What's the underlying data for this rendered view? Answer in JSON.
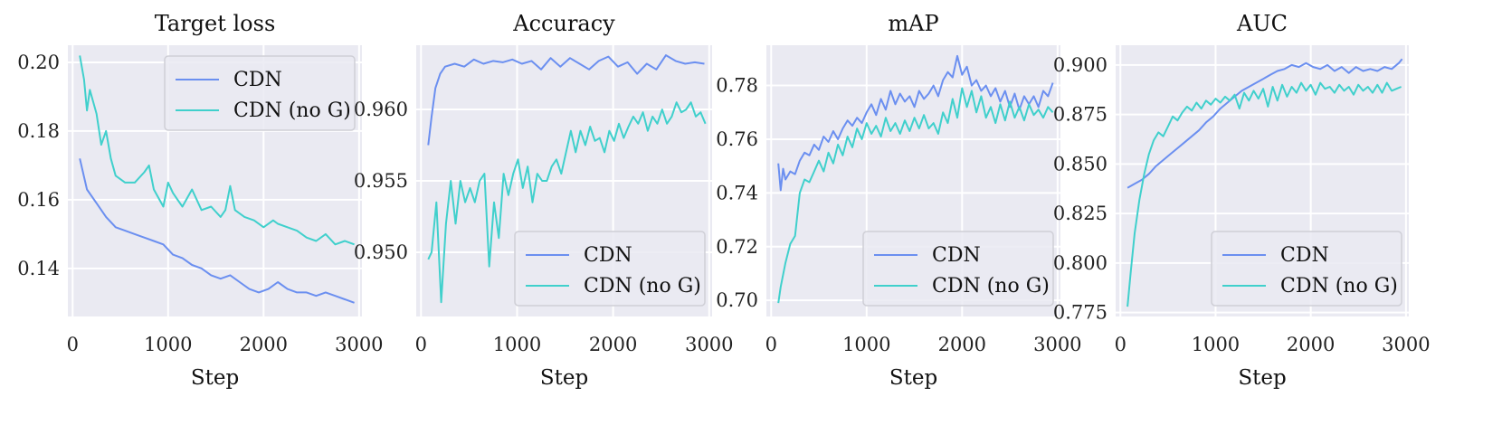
{
  "colors": {
    "cdn": "#6b8ff0",
    "cdn_no_g": "#40d0cc",
    "panel_bg": "#eaeaf2",
    "grid": "#ffffff"
  },
  "chart_data": [
    {
      "type": "line",
      "title": "Target loss",
      "xlabel": "Step",
      "ylabel": "",
      "xlim": [
        -50,
        3030
      ],
      "ylim": [
        0.126,
        0.205
      ],
      "xticks": [
        0,
        1000,
        2000,
        3000
      ],
      "xtick_labels": [
        "0",
        "1000",
        "2000",
        "3000"
      ],
      "yticks": [
        0.14,
        0.16,
        0.18,
        0.2
      ],
      "ytick_labels": [
        "0.14",
        "0.16",
        "0.18",
        "0.20"
      ],
      "legend": {
        "position": "top-right",
        "entries": [
          "CDN",
          "CDN (no G)"
        ]
      },
      "grid": true,
      "series": [
        {
          "name": "CDN",
          "color_key": "cdn",
          "x": [
            75,
            150,
            250,
            350,
            450,
            550,
            650,
            750,
            850,
            950,
            1050,
            1150,
            1250,
            1350,
            1450,
            1550,
            1650,
            1750,
            1850,
            1950,
            2050,
            2150,
            2250,
            2350,
            2450,
            2550,
            2650,
            2750,
            2850,
            2950
          ],
          "y": [
            0.172,
            0.163,
            0.159,
            0.155,
            0.152,
            0.151,
            0.15,
            0.149,
            0.148,
            0.147,
            0.144,
            0.143,
            0.141,
            0.14,
            0.138,
            0.137,
            0.138,
            0.136,
            0.134,
            0.133,
            0.134,
            0.136,
            0.134,
            0.133,
            0.133,
            0.132,
            0.133,
            0.132,
            0.131,
            0.13
          ]
        },
        {
          "name": "CDN (no G)",
          "color_key": "cdn_no_g",
          "x": [
            75,
            120,
            150,
            180,
            250,
            300,
            350,
            400,
            450,
            550,
            650,
            750,
            800,
            850,
            950,
            1000,
            1050,
            1100,
            1150,
            1250,
            1350,
            1450,
            1550,
            1600,
            1650,
            1700,
            1800,
            1900,
            2000,
            2100,
            2150,
            2250,
            2350,
            2450,
            2550,
            2650,
            2750,
            2850,
            2950
          ],
          "y": [
            0.202,
            0.195,
            0.186,
            0.192,
            0.185,
            0.176,
            0.18,
            0.172,
            0.167,
            0.165,
            0.165,
            0.168,
            0.17,
            0.163,
            0.158,
            0.165,
            0.162,
            0.16,
            0.158,
            0.163,
            0.157,
            0.158,
            0.155,
            0.157,
            0.164,
            0.157,
            0.155,
            0.154,
            0.152,
            0.154,
            0.153,
            0.152,
            0.151,
            0.149,
            0.148,
            0.15,
            0.147,
            0.148,
            0.147
          ]
        }
      ]
    },
    {
      "type": "line",
      "title": "Accuracy",
      "xlabel": "Step",
      "ylabel": "",
      "xlim": [
        -50,
        3030
      ],
      "ylim": [
        0.9455,
        0.9645
      ],
      "xticks": [
        0,
        1000,
        2000,
        3000
      ],
      "xtick_labels": [
        "0",
        "1000",
        "2000",
        "3000"
      ],
      "yticks": [
        0.95,
        0.955,
        0.96
      ],
      "ytick_labels": [
        "0.950",
        "0.955",
        "0.960"
      ],
      "legend": {
        "position": "bottom-right",
        "entries": [
          "CDN",
          "CDN (no G)"
        ]
      },
      "grid": true,
      "series": [
        {
          "name": "CDN",
          "color_key": "cdn",
          "x": [
            75,
            110,
            150,
            200,
            250,
            350,
            450,
            550,
            650,
            750,
            850,
            950,
            1050,
            1150,
            1250,
            1350,
            1450,
            1550,
            1650,
            1750,
            1850,
            1950,
            2050,
            2150,
            2250,
            2350,
            2450,
            2550,
            2650,
            2750,
            2850,
            2950
          ],
          "y": [
            0.9575,
            0.9595,
            0.9615,
            0.9625,
            0.963,
            0.9632,
            0.963,
            0.9635,
            0.9632,
            0.9634,
            0.9633,
            0.9635,
            0.9632,
            0.9634,
            0.9628,
            0.9636,
            0.963,
            0.9636,
            0.9632,
            0.9628,
            0.9634,
            0.9637,
            0.963,
            0.9633,
            0.9625,
            0.9632,
            0.9628,
            0.9638,
            0.9634,
            0.9632,
            0.9633,
            0.9632
          ]
        },
        {
          "name": "CDN (no G)",
          "color_key": "cdn_no_g",
          "x": [
            75,
            110,
            160,
            210,
            260,
            310,
            360,
            410,
            460,
            510,
            560,
            610,
            660,
            710,
            760,
            810,
            860,
            910,
            960,
            1010,
            1060,
            1110,
            1160,
            1210,
            1260,
            1310,
            1360,
            1410,
            1460,
            1510,
            1560,
            1610,
            1660,
            1710,
            1760,
            1810,
            1860,
            1910,
            1960,
            2010,
            2060,
            2110,
            2160,
            2210,
            2260,
            2310,
            2360,
            2410,
            2460,
            2510,
            2560,
            2610,
            2660,
            2710,
            2760,
            2810,
            2860,
            2910,
            2960
          ],
          "y": [
            0.9495,
            0.95,
            0.9535,
            0.9465,
            0.952,
            0.955,
            0.952,
            0.955,
            0.9535,
            0.9545,
            0.9535,
            0.955,
            0.9555,
            0.949,
            0.9535,
            0.951,
            0.9555,
            0.954,
            0.9555,
            0.9565,
            0.9545,
            0.956,
            0.9535,
            0.9555,
            0.955,
            0.955,
            0.956,
            0.9565,
            0.9555,
            0.957,
            0.9585,
            0.957,
            0.9585,
            0.9575,
            0.9588,
            0.9578,
            0.958,
            0.957,
            0.9585,
            0.9578,
            0.959,
            0.958,
            0.9588,
            0.9595,
            0.959,
            0.9598,
            0.9585,
            0.9595,
            0.959,
            0.96,
            0.959,
            0.9595,
            0.9605,
            0.9598,
            0.96,
            0.9605,
            0.9595,
            0.9598,
            0.959
          ]
        }
      ]
    },
    {
      "type": "line",
      "title": "mAP",
      "xlabel": "Step",
      "ylabel": "",
      "xlim": [
        -50,
        3030
      ],
      "ylim": [
        0.694,
        0.795
      ],
      "xticks": [
        0,
        1000,
        2000,
        3000
      ],
      "xtick_labels": [
        "0",
        "1000",
        "2000",
        "3000"
      ],
      "yticks": [
        0.7,
        0.72,
        0.74,
        0.76,
        0.78
      ],
      "ytick_labels": [
        "0.70",
        "0.72",
        "0.74",
        "0.76",
        "0.78"
      ],
      "legend": {
        "position": "bottom-right",
        "entries": [
          "CDN",
          "CDN (no G)"
        ]
      },
      "grid": true,
      "series": [
        {
          "name": "CDN",
          "color_key": "cdn",
          "x": [
            75,
            100,
            125,
            150,
            200,
            250,
            300,
            350,
            400,
            450,
            500,
            550,
            600,
            650,
            700,
            750,
            800,
            850,
            900,
            950,
            1000,
            1050,
            1100,
            1150,
            1200,
            1250,
            1300,
            1350,
            1400,
            1450,
            1500,
            1550,
            1600,
            1650,
            1700,
            1750,
            1800,
            1850,
            1900,
            1950,
            2000,
            2050,
            2100,
            2150,
            2200,
            2250,
            2300,
            2350,
            2400,
            2450,
            2500,
            2550,
            2600,
            2650,
            2700,
            2750,
            2800,
            2850,
            2900,
            2950
          ],
          "y": [
            0.751,
            0.741,
            0.749,
            0.745,
            0.748,
            0.747,
            0.752,
            0.755,
            0.754,
            0.758,
            0.756,
            0.761,
            0.759,
            0.763,
            0.76,
            0.764,
            0.767,
            0.765,
            0.768,
            0.766,
            0.77,
            0.773,
            0.769,
            0.775,
            0.771,
            0.778,
            0.773,
            0.777,
            0.774,
            0.776,
            0.772,
            0.778,
            0.775,
            0.777,
            0.78,
            0.776,
            0.782,
            0.785,
            0.783,
            0.791,
            0.784,
            0.787,
            0.78,
            0.782,
            0.778,
            0.78,
            0.776,
            0.779,
            0.774,
            0.778,
            0.772,
            0.777,
            0.771,
            0.776,
            0.773,
            0.776,
            0.772,
            0.778,
            0.776,
            0.781
          ]
        },
        {
          "name": "CDN (no G)",
          "color_key": "cdn_no_g",
          "x": [
            75,
            100,
            150,
            200,
            250,
            300,
            350,
            400,
            450,
            500,
            550,
            600,
            650,
            700,
            750,
            800,
            850,
            900,
            950,
            1000,
            1050,
            1100,
            1150,
            1200,
            1250,
            1300,
            1350,
            1400,
            1450,
            1500,
            1550,
            1600,
            1650,
            1700,
            1750,
            1800,
            1850,
            1900,
            1950,
            2000,
            2050,
            2100,
            2150,
            2200,
            2250,
            2300,
            2350,
            2400,
            2450,
            2500,
            2550,
            2600,
            2650,
            2700,
            2750,
            2800,
            2850,
            2900,
            2950
          ],
          "y": [
            0.699,
            0.705,
            0.714,
            0.721,
            0.724,
            0.74,
            0.745,
            0.744,
            0.748,
            0.752,
            0.748,
            0.755,
            0.751,
            0.758,
            0.754,
            0.761,
            0.757,
            0.764,
            0.76,
            0.766,
            0.762,
            0.765,
            0.761,
            0.768,
            0.763,
            0.766,
            0.762,
            0.767,
            0.763,
            0.768,
            0.764,
            0.769,
            0.764,
            0.766,
            0.762,
            0.77,
            0.766,
            0.775,
            0.768,
            0.779,
            0.772,
            0.778,
            0.77,
            0.776,
            0.768,
            0.772,
            0.766,
            0.773,
            0.767,
            0.774,
            0.768,
            0.772,
            0.767,
            0.773,
            0.769,
            0.771,
            0.768,
            0.772,
            0.77
          ]
        }
      ]
    },
    {
      "type": "line",
      "title": "AUC",
      "xlabel": "Step",
      "ylabel": "",
      "xlim": [
        -50,
        3030
      ],
      "ylim": [
        0.773,
        0.91
      ],
      "xticks": [
        0,
        1000,
        2000,
        3000
      ],
      "xtick_labels": [
        "0",
        "1000",
        "2000",
        "3000"
      ],
      "yticks": [
        0.775,
        0.8,
        0.825,
        0.85,
        0.875,
        0.9
      ],
      "ytick_labels": [
        "0.775",
        "0.800",
        "0.825",
        "0.850",
        "0.875",
        "0.900"
      ],
      "legend": {
        "position": "bottom-right",
        "entries": [
          "CDN",
          "CDN (no G)"
        ]
      },
      "grid": true,
      "series": [
        {
          "name": "CDN",
          "color_key": "cdn",
          "x": [
            75,
            150,
            225,
            300,
            375,
            450,
            525,
            600,
            675,
            750,
            825,
            900,
            975,
            1050,
            1125,
            1200,
            1275,
            1350,
            1425,
            1500,
            1575,
            1650,
            1725,
            1800,
            1875,
            1950,
            2025,
            2100,
            2175,
            2250,
            2325,
            2400,
            2475,
            2550,
            2625,
            2700,
            2775,
            2850,
            2925,
            2960
          ],
          "y": [
            0.838,
            0.84,
            0.842,
            0.845,
            0.849,
            0.852,
            0.855,
            0.858,
            0.861,
            0.864,
            0.867,
            0.871,
            0.874,
            0.878,
            0.881,
            0.884,
            0.887,
            0.889,
            0.891,
            0.893,
            0.895,
            0.897,
            0.898,
            0.9,
            0.899,
            0.901,
            0.899,
            0.898,
            0.9,
            0.897,
            0.899,
            0.896,
            0.899,
            0.897,
            0.898,
            0.897,
            0.899,
            0.898,
            0.901,
            0.903
          ]
        },
        {
          "name": "CDN (no G)",
          "color_key": "cdn_no_g",
          "x": [
            75,
            110,
            150,
            200,
            250,
            300,
            350,
            400,
            450,
            500,
            550,
            600,
            650,
            700,
            750,
            800,
            850,
            900,
            950,
            1000,
            1050,
            1100,
            1150,
            1200,
            1250,
            1300,
            1350,
            1400,
            1450,
            1500,
            1550,
            1600,
            1650,
            1700,
            1750,
            1800,
            1850,
            1900,
            1950,
            2000,
            2050,
            2100,
            2150,
            2200,
            2250,
            2300,
            2350,
            2400,
            2450,
            2500,
            2550,
            2600,
            2650,
            2700,
            2750,
            2800,
            2850,
            2900,
            2950
          ],
          "y": [
            0.778,
            0.796,
            0.815,
            0.832,
            0.845,
            0.855,
            0.862,
            0.866,
            0.864,
            0.869,
            0.874,
            0.872,
            0.876,
            0.879,
            0.877,
            0.881,
            0.878,
            0.882,
            0.88,
            0.883,
            0.881,
            0.884,
            0.882,
            0.885,
            0.878,
            0.886,
            0.882,
            0.887,
            0.883,
            0.888,
            0.879,
            0.889,
            0.882,
            0.89,
            0.884,
            0.889,
            0.886,
            0.891,
            0.887,
            0.89,
            0.885,
            0.891,
            0.888,
            0.889,
            0.886,
            0.89,
            0.887,
            0.889,
            0.885,
            0.89,
            0.887,
            0.889,
            0.886,
            0.89,
            0.886,
            0.891,
            0.887,
            0.888,
            0.889
          ]
        }
      ]
    }
  ]
}
